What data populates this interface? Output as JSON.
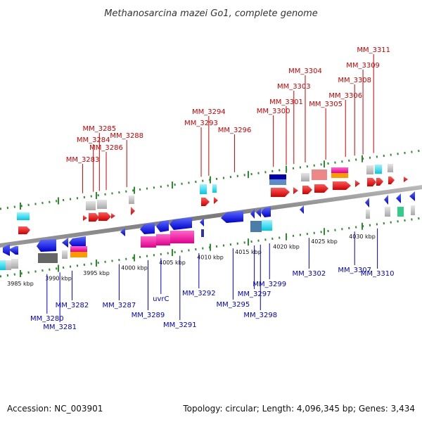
{
  "title": "Methanosarcina mazei Go1, complete genome",
  "footer": {
    "accession": "Accession: NC_003901",
    "summary": "Topology: circular; Length: 4,096,345 bp; Genes: 3,434"
  },
  "colors": {
    "forward_label": "#cc0000",
    "reverse_label": "#0000cc",
    "backbone": "#888888",
    "tick_dots": "#2e8b2e",
    "forward_gene": "#ff0000",
    "reverse_gene": "#0000ff",
    "magenta": "#ff00aa",
    "cyan": "#00e5ff",
    "gray": "#bbbbbb"
  },
  "scale": {
    "unit": "kbp",
    "ticks": [
      {
        "kbp": 3985,
        "label": "3985 kbp"
      },
      {
        "kbp": 3990,
        "label": "3990 kbp"
      },
      {
        "kbp": 3995,
        "label": "3995 kbp"
      },
      {
        "kbp": 4000,
        "label": "4000 kbp"
      },
      {
        "kbp": 4005,
        "label": "4005 kbp"
      },
      {
        "kbp": 4010,
        "label": "4010 kbp"
      },
      {
        "kbp": 4015,
        "label": "4015 kbp"
      },
      {
        "kbp": 4020,
        "label": "4020 kbp"
      },
      {
        "kbp": 4025,
        "label": "4025 kbp"
      },
      {
        "kbp": 4030,
        "label": "4030 kbp"
      }
    ]
  },
  "forward_genes": [
    {
      "label": "MM_3283",
      "kbp": 3993.2
    },
    {
      "label": "MM_3284",
      "kbp": 3994.6
    },
    {
      "label": "MM_3285",
      "kbp": 3995.4
    },
    {
      "label": "MM_3286",
      "kbp": 3996.3
    },
    {
      "label": "MM_3288",
      "kbp": 3999.0
    },
    {
      "label": "MM_3293",
      "kbp": 4008.8
    },
    {
      "label": "MM_3294",
      "kbp": 4009.8
    },
    {
      "label": "MM_3296",
      "kbp": 4013.2
    },
    {
      "label": "MM_3300",
      "kbp": 4018.3
    },
    {
      "label": "MM_3301",
      "kbp": 4020.0
    },
    {
      "label": "MM_3303",
      "kbp": 4021.0
    },
    {
      "label": "MM_3304",
      "kbp": 4022.5
    },
    {
      "label": "MM_3305",
      "kbp": 4025.2
    },
    {
      "label": "MM_3306",
      "kbp": 4027.8
    },
    {
      "label": "MM_3308",
      "kbp": 4029.0
    },
    {
      "label": "MM_3309",
      "kbp": 4030.1
    },
    {
      "label": "MM_3311",
      "kbp": 4031.5
    }
  ],
  "reverse_genes": [
    {
      "label": "MM_3280",
      "kbp": 3988.5
    },
    {
      "label": "MM_3281",
      "kbp": 3990.2
    },
    {
      "label": "MM_3282",
      "kbp": 3991.8
    },
    {
      "label": "MM_3287",
      "kbp": 3998.0
    },
    {
      "label": "MM_3289",
      "kbp": 4001.8
    },
    {
      "label": "uvrC",
      "kbp": 4003.5
    },
    {
      "label": "MM_3291",
      "kbp": 4006.0
    },
    {
      "label": "MM_3292",
      "kbp": 4008.5
    },
    {
      "label": "MM_3295",
      "kbp": 4013.0
    },
    {
      "label": "MM_3297",
      "kbp": 4015.8
    },
    {
      "label": "MM_3298",
      "kbp": 4016.6
    },
    {
      "label": "MM_3299",
      "kbp": 4017.8
    },
    {
      "label": "MM_3302",
      "kbp": 4023.0
    },
    {
      "label": "MM_3307",
      "kbp": 4029.0
    },
    {
      "label": "MM_3310",
      "kbp": 4032.0
    }
  ]
}
